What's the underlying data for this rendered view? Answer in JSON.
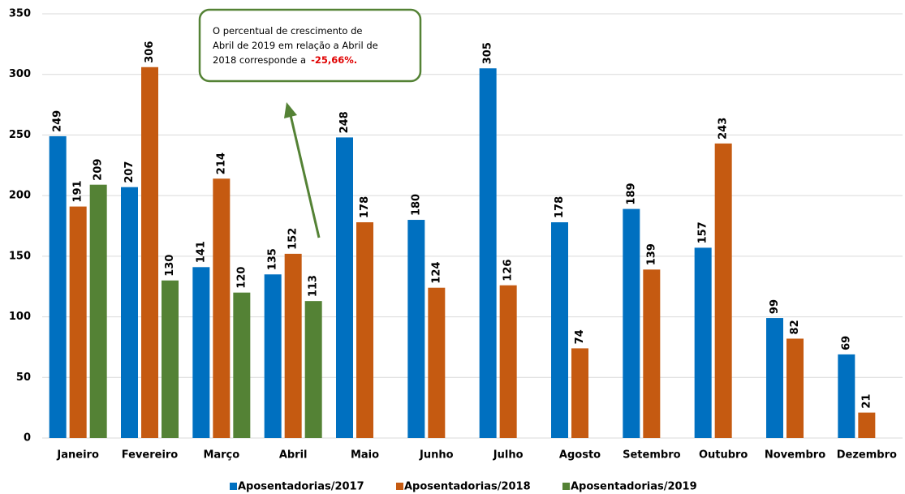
{
  "chart_data": {
    "type": "bar",
    "categories": [
      "Janeiro",
      "Fevereiro",
      "Março",
      "Abril",
      "Maio",
      "Junho",
      "Julho",
      "Agosto",
      "Setembro",
      "Outubro",
      "Novembro",
      "Dezembro"
    ],
    "series": [
      {
        "name": "Aposentadorias/2017",
        "color": "#0070c0",
        "values": [
          249,
          207,
          141,
          135,
          248,
          180,
          305,
          178,
          189,
          157,
          99,
          69
        ]
      },
      {
        "name": "Aposentadorias/2018",
        "color": "#c55a11",
        "values": [
          191,
          306,
          214,
          152,
          178,
          124,
          126,
          74,
          139,
          243,
          82,
          21
        ]
      },
      {
        "name": "Aposentadorias/2019",
        "color": "#548235",
        "values": [
          209,
          130,
          120,
          113,
          null,
          null,
          null,
          null,
          null,
          null,
          null,
          null
        ]
      }
    ],
    "ylim": [
      0,
      350
    ],
    "yticks": [
      0,
      50,
      100,
      150,
      200,
      250,
      300,
      350
    ],
    "grid": true,
    "legend": "bottom",
    "annotation": {
      "lines": [
        "O percentual de crescimento de",
        "Abril de 2019 em relação a Abril de",
        "2018 corresponde a"
      ],
      "highlight": "-25,66%."
    }
  }
}
